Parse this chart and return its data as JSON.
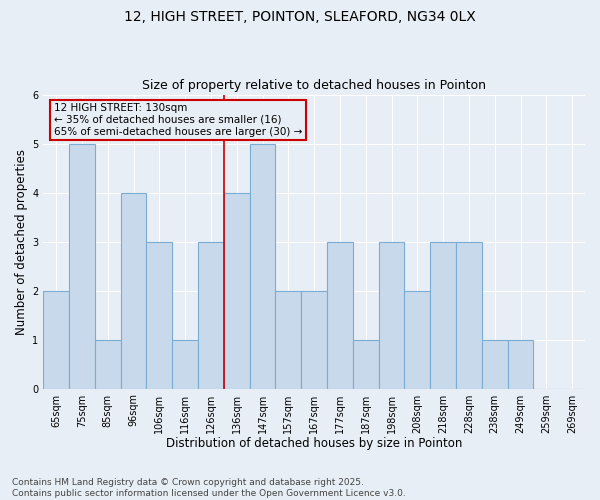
{
  "title_line1": "12, HIGH STREET, POINTON, SLEAFORD, NG34 0LX",
  "title_line2": "Size of property relative to detached houses in Pointon",
  "xlabel": "Distribution of detached houses by size in Pointon",
  "ylabel": "Number of detached properties",
  "footer": "Contains HM Land Registry data © Crown copyright and database right 2025.\nContains public sector information licensed under the Open Government Licence v3.0.",
  "categories": [
    "65sqm",
    "75sqm",
    "85sqm",
    "96sqm",
    "106sqm",
    "116sqm",
    "126sqm",
    "136sqm",
    "147sqm",
    "157sqm",
    "167sqm",
    "177sqm",
    "187sqm",
    "198sqm",
    "208sqm",
    "218sqm",
    "228sqm",
    "238sqm",
    "249sqm",
    "259sqm",
    "269sqm"
  ],
  "values": [
    2,
    5,
    1,
    4,
    3,
    1,
    3,
    4,
    5,
    2,
    2,
    3,
    1,
    3,
    2,
    3,
    3,
    1,
    1,
    0,
    0
  ],
  "bar_color": "#c9d9ec",
  "bar_edge_color": "#7aadd4",
  "vline_x_index": 6.5,
  "vline_color": "#cc0000",
  "annotation_text": "12 HIGH STREET: 130sqm\n← 35% of detached houses are smaller (16)\n65% of semi-detached houses are larger (30) →",
  "annotation_box_color": "#cc0000",
  "ylim": [
    0,
    6
  ],
  "yticks": [
    0,
    1,
    2,
    3,
    4,
    5,
    6
  ],
  "background_color": "#e8eef5",
  "grid_color": "#ffffff",
  "title_fontsize": 10,
  "subtitle_fontsize": 9,
  "axis_label_fontsize": 8.5,
  "tick_fontsize": 7,
  "footer_fontsize": 6.5,
  "annotation_fontsize": 7.5
}
